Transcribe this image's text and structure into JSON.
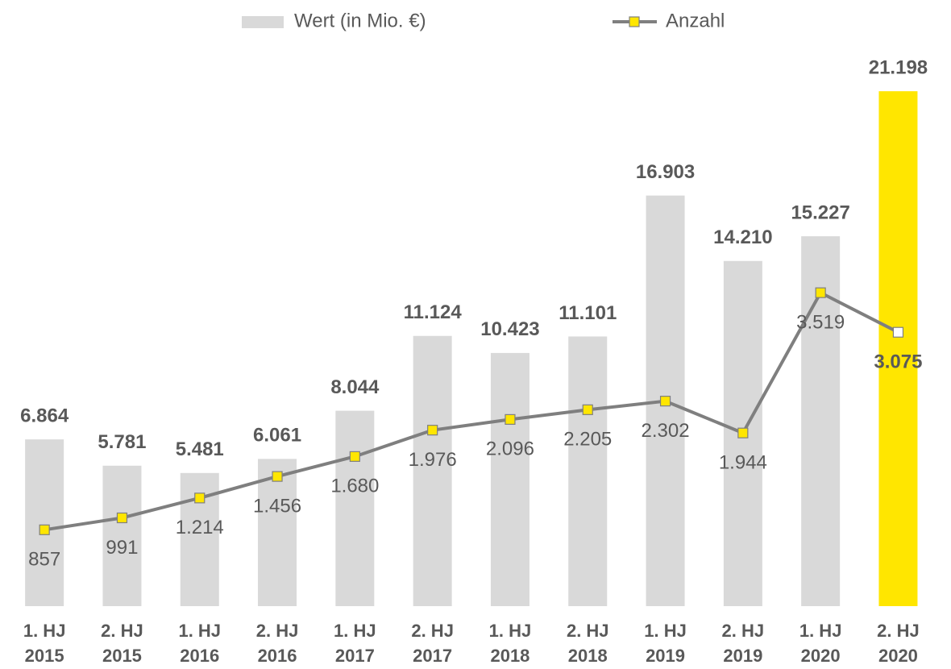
{
  "chart_data": {
    "type": "bar-line",
    "categories": [
      [
        "1. HJ",
        "2015"
      ],
      [
        "2. HJ",
        "2015"
      ],
      [
        "1. HJ",
        "2016"
      ],
      [
        "2. HJ",
        "2016"
      ],
      [
        "1. HJ",
        "2017"
      ],
      [
        "2. HJ",
        "2017"
      ],
      [
        "1. HJ",
        "2018"
      ],
      [
        "2. HJ",
        "2018"
      ],
      [
        "1. HJ",
        "2019"
      ],
      [
        "2. HJ",
        "2019"
      ],
      [
        "1. HJ",
        "2020"
      ],
      [
        "2. HJ",
        "2020"
      ]
    ],
    "series": [
      {
        "name": "Wert (in Mio. €)",
        "kind": "bar",
        "color": "#d9d9d9",
        "colors": [
          "#d9d9d9",
          "#d9d9d9",
          "#d9d9d9",
          "#d9d9d9",
          "#d9d9d9",
          "#d9d9d9",
          "#d9d9d9",
          "#d9d9d9",
          "#d9d9d9",
          "#d9d9d9",
          "#d9d9d9",
          "#ffe600"
        ],
        "values": [
          6864,
          5781,
          5481,
          6061,
          8044,
          11124,
          10423,
          11101,
          16903,
          14210,
          15227,
          21198
        ],
        "value_labels": [
          "6.864",
          "5.781",
          "5.481",
          "6.061",
          "8.044",
          "11.124",
          "10.423",
          "11.101",
          "16.903",
          "14.210",
          "15.227",
          "21.198"
        ]
      },
      {
        "name": "Anzahl",
        "kind": "line",
        "axis": "y2",
        "color": "#7f7f7f",
        "marker_color": "#ffe600",
        "marker_colors": [
          "#ffe600",
          "#ffe600",
          "#ffe600",
          "#ffe600",
          "#ffe600",
          "#ffe600",
          "#ffe600",
          "#ffe600",
          "#ffe600",
          "#ffe600",
          "#ffe600",
          "#ffffff"
        ],
        "values": [
          857,
          991,
          1214,
          1456,
          1680,
          1976,
          2096,
          2205,
          2302,
          1944,
          3519,
          3075
        ],
        "value_labels": [
          "857",
          "991",
          "1.214",
          "1.456",
          "1.680",
          "1.976",
          "2.096",
          "2.205",
          "2.302",
          "1.944",
          "3.519",
          "3.075"
        ]
      }
    ],
    "ylim": [
      0,
      22000
    ],
    "y2lim": [
      0,
      6000
    ]
  }
}
